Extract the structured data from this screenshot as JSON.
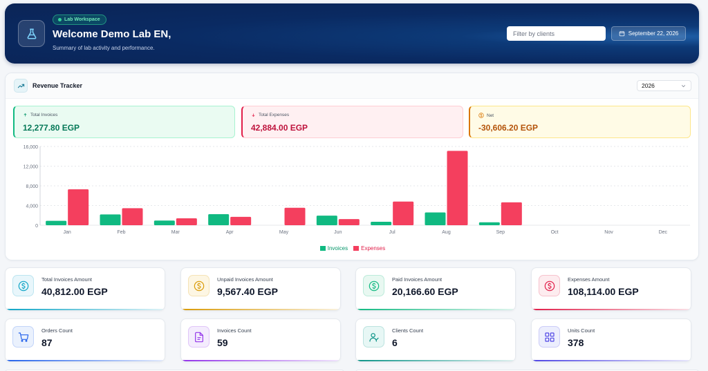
{
  "header": {
    "badge": "Lab Workspace",
    "title": "Welcome Demo Lab EN,",
    "subtitle": "Summary of lab activity and performance.",
    "filter_placeholder": "Filter by clients",
    "date": "September 22, 2026",
    "icon": "flask-icon"
  },
  "revenue": {
    "title": "Revenue Tracker",
    "year": "2026",
    "kpis": {
      "invoices": {
        "label": "Total Invoices",
        "value": "12,277.80 EGP"
      },
      "expenses": {
        "label": "Total Expenses",
        "value": "42,884.00 EGP"
      },
      "net": {
        "label": "Net",
        "value": "-30,606.20 EGP"
      }
    }
  },
  "chart_data": {
    "type": "bar",
    "categories": [
      "Jan",
      "Feb",
      "Mar",
      "Apr",
      "May",
      "Jun",
      "Jul",
      "Aug",
      "Sep",
      "Oct",
      "Nov",
      "Dec"
    ],
    "series": [
      {
        "name": "Invoices",
        "color": "#10b981",
        "values": [
          900,
          2200,
          950,
          2250,
          0,
          1950,
          700,
          2600,
          600,
          0,
          0,
          0
        ]
      },
      {
        "name": "Expenses",
        "color": "#f43f5e",
        "values": [
          7300,
          3450,
          1400,
          1700,
          3550,
          1250,
          4800,
          15100,
          4650,
          0,
          0,
          0
        ]
      }
    ],
    "yticks": [
      "16,000",
      "12,000",
      "8,000",
      "4,000",
      "0"
    ],
    "ylim": [
      0,
      16000
    ],
    "grid": true,
    "legend": "bottom-center"
  },
  "stats": [
    {
      "label": "Total Invoices Amount",
      "value": "40,812.00 EGP",
      "icon": "dollar-icon",
      "color": "#0ea5c6",
      "bg": "#e8f6fb"
    },
    {
      "label": "Unpaid Invoices Amount",
      "value": "9,567.40 EGP",
      "icon": "dollar-icon",
      "color": "#d99a06",
      "bg": "#fdf6e3"
    },
    {
      "label": "Paid Invoices Amount",
      "value": "20,166.60 EGP",
      "icon": "dollar-icon",
      "color": "#10b981",
      "bg": "#e8f8f1"
    },
    {
      "label": "Expenses Amount",
      "value": "108,114.00 EGP",
      "icon": "dollar-icon",
      "color": "#e11d48",
      "bg": "#fdecef"
    },
    {
      "label": "Orders Count",
      "value": "87",
      "icon": "cart-icon",
      "color": "#2563eb",
      "bg": "#eaf1fd"
    },
    {
      "label": "Invoices Count",
      "value": "59",
      "icon": "document-icon",
      "color": "#9333ea",
      "bg": "#f4ecfd"
    },
    {
      "label": "Clients Count",
      "value": "6",
      "icon": "users-icon",
      "color": "#0d9488",
      "bg": "#e7f7f5"
    },
    {
      "label": "Units Count",
      "value": "378",
      "icon": "grid-icon",
      "color": "#4f46e5",
      "bg": "#eceefd"
    }
  ]
}
